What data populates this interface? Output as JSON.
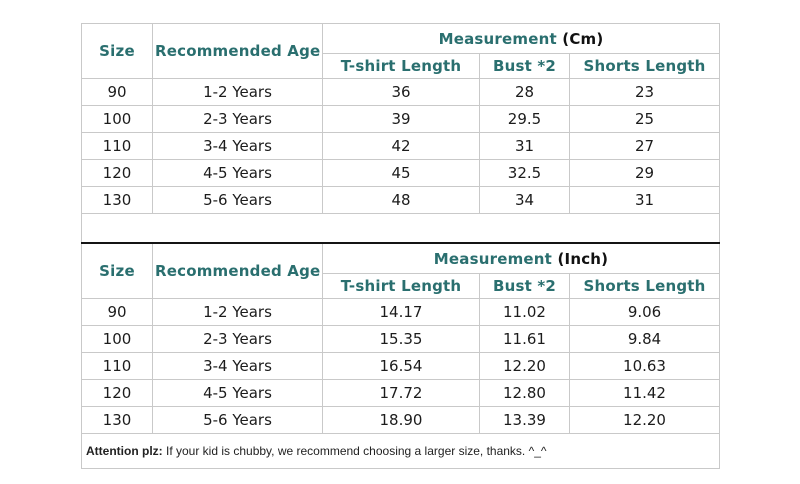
{
  "accent_color": "#2a6f6f",
  "tables": [
    {
      "measurement_label": "Measurement",
      "unit": "(Cm)",
      "headers": {
        "size": "Size",
        "age": "Recommended Age",
        "tshirt": "T-shirt Length",
        "bust": "Bust *2",
        "shorts": "Shorts Length"
      },
      "rows": [
        {
          "size": "90",
          "age": "1-2 Years",
          "tshirt": "36",
          "bust": "28",
          "shorts": "23"
        },
        {
          "size": "100",
          "age": "2-3 Years",
          "tshirt": "39",
          "bust": "29.5",
          "shorts": "25"
        },
        {
          "size": "110",
          "age": "3-4 Years",
          "tshirt": "42",
          "bust": "31",
          "shorts": "27"
        },
        {
          "size": "120",
          "age": "4-5 Years",
          "tshirt": "45",
          "bust": "32.5",
          "shorts": "29"
        },
        {
          "size": "130",
          "age": "5-6 Years",
          "tshirt": "48",
          "bust": "34",
          "shorts": "31"
        }
      ]
    },
    {
      "measurement_label": "Measurement",
      "unit": "(Inch)",
      "headers": {
        "size": "Size",
        "age": "Recommended Age",
        "tshirt": "T-shirt Length",
        "bust": "Bust *2",
        "shorts": "Shorts Length"
      },
      "rows": [
        {
          "size": "90",
          "age": "1-2 Years",
          "tshirt": "14.17",
          "bust": "11.02",
          "shorts": "9.06"
        },
        {
          "size": "100",
          "age": "2-3 Years",
          "tshirt": "15.35",
          "bust": "11.61",
          "shorts": "9.84"
        },
        {
          "size": "110",
          "age": "3-4 Years",
          "tshirt": "16.54",
          "bust": "12.20",
          "shorts": "10.63"
        },
        {
          "size": "120",
          "age": "4-5 Years",
          "tshirt": "17.72",
          "bust": "12.80",
          "shorts": "11.42"
        },
        {
          "size": "130",
          "age": "5-6 Years",
          "tshirt": "18.90",
          "bust": "13.39",
          "shorts": "12.20"
        }
      ]
    }
  ],
  "footer": {
    "label": "Attention plz:",
    "text": " If your kid is chubby, we recommend choosing a larger size, thanks. ^_^"
  },
  "chart_data": [
    {
      "type": "table",
      "title": "Measurement (Cm)",
      "columns": [
        "Size",
        "Recommended Age",
        "T-shirt Length",
        "Bust *2",
        "Shorts Length"
      ],
      "rows": [
        [
          90,
          "1-2 Years",
          36,
          28,
          23
        ],
        [
          100,
          "2-3 Years",
          39,
          29.5,
          25
        ],
        [
          110,
          "3-4 Years",
          42,
          31,
          27
        ],
        [
          120,
          "4-5 Years",
          45,
          32.5,
          29
        ],
        [
          130,
          "5-6 Years",
          48,
          34,
          31
        ]
      ]
    },
    {
      "type": "table",
      "title": "Measurement (Inch)",
      "columns": [
        "Size",
        "Recommended Age",
        "T-shirt Length",
        "Bust *2",
        "Shorts Length"
      ],
      "rows": [
        [
          90,
          "1-2 Years",
          14.17,
          11.02,
          9.06
        ],
        [
          100,
          "2-3 Years",
          15.35,
          11.61,
          9.84
        ],
        [
          110,
          "3-4 Years",
          16.54,
          12.2,
          10.63
        ],
        [
          120,
          "4-5 Years",
          17.72,
          12.8,
          11.42
        ],
        [
          130,
          "5-6 Years",
          18.9,
          13.39,
          12.2
        ]
      ],
      "note": "Attention plz: If your kid is chubby, we recommend choosing a larger size, thanks. ^_^"
    }
  ]
}
